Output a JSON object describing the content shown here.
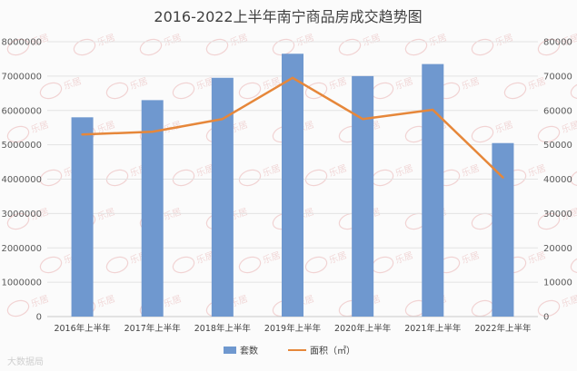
{
  "chart_data": {
    "type": "bar",
    "title": "2016-2022上半年南宁商品房成交趋势图",
    "categories": [
      "2016年上半年",
      "2017年上半年",
      "2018年上半年",
      "2019年上半年",
      "2020年上半年",
      "2021年上半年",
      "2022年上半年"
    ],
    "series": [
      {
        "name": "套数",
        "type": "bar",
        "axis": "left",
        "color": "#6f98cf",
        "values": [
          5800000,
          6300000,
          6950000,
          7650000,
          7000000,
          7350000,
          5050000
        ]
      },
      {
        "name": "面积（㎡）",
        "type": "line",
        "axis": "right",
        "color": "#e6873a",
        "values": [
          53000,
          53800,
          57500,
          69500,
          57500,
          60200,
          40500
        ]
      }
    ],
    "left_axis": {
      "ylim": [
        0,
        8000000
      ],
      "ticks": [
        "0",
        "1000000",
        "2000000",
        "3000000",
        "4000000",
        "5000000",
        "6000000",
        "7000000",
        "8000000"
      ]
    },
    "right_axis": {
      "ylim": [
        0,
        80000
      ],
      "ticks": [
        "0",
        "10000",
        "20000",
        "30000",
        "40000",
        "50000",
        "60000",
        "70000",
        "80000"
      ]
    },
    "grid": true,
    "legend_position": "bottom"
  },
  "watermark_text": "乐居",
  "corner_caption": "大数据局"
}
